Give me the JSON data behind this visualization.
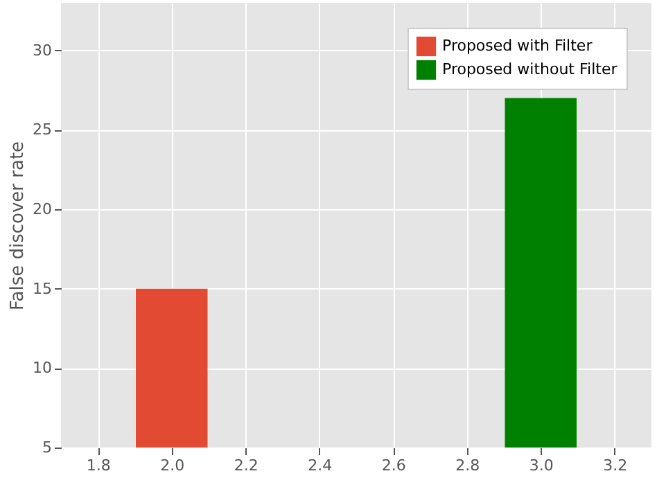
{
  "chart_data": {
    "type": "bar",
    "ylabel": "False discover rate",
    "xlim": [
      1.7,
      3.3
    ],
    "xticks": [
      1.8,
      {
        "value": 2,
        "label": "2.0"
      },
      2.2,
      2.4,
      2.6,
      2.8,
      {
        "value": 3,
        "label": "3.0"
      },
      3.2
    ],
    "ylim": [
      5,
      33
    ],
    "yticks": [
      5,
      10,
      15,
      20,
      25,
      30
    ],
    "grid": true,
    "legend": "top right",
    "series": [
      {
        "name": "Proposed with Filter",
        "color": "#e24a33",
        "x": [
          2.0
        ],
        "values": [
          15
        ]
      },
      {
        "name": "Proposed without Filter",
        "color": "#008000",
        "x": [
          3.0
        ],
        "values": [
          27
        ]
      }
    ]
  }
}
